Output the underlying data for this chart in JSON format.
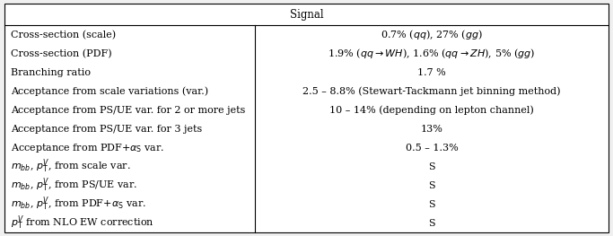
{
  "title": "Signal",
  "rows": [
    [
      "Cross-section (scale)",
      "0.7% ($qq$), 27% ($gg$)"
    ],
    [
      "Cross-section (PDF)",
      "1.9% ($qq \\rightarrow WH$), 1.6% ($qq \\rightarrow ZH$), 5% ($gg$)"
    ],
    [
      "Branching ratio",
      "1.7 %"
    ],
    [
      "Acceptance from scale variations (var.)",
      "2.5 – 8.8% (Stewart-Tackmann jet binning method)"
    ],
    [
      "Acceptance from PS/UE var. for 2 or more jets",
      "10 – 14% (depending on lepton channel)"
    ],
    [
      "Acceptance from PS/UE var. for 3 jets",
      "13%"
    ],
    [
      "Acceptance from PDF+$\\alpha_\\mathrm{S}$ var.",
      "0.5 – 1.3%"
    ],
    [
      "$m_{bb}$, $p_\\mathrm{T}^{V}$, from scale var.",
      "S"
    ],
    [
      "$m_{bb}$, $p_\\mathrm{T}^{V}$, from PS/UE var.",
      "S"
    ],
    [
      "$m_{bb}$, $p_\\mathrm{T}^{V}$, from PDF+$\\alpha_\\mathrm{S}$ var.",
      "S"
    ],
    [
      "$p_\\mathrm{T}^{V}$ from NLO EW correction",
      "S"
    ]
  ],
  "col_split": 0.415,
  "figsize": [
    6.83,
    2.63
  ],
  "dpi": 100,
  "fontsize": 8.0,
  "title_fontsize": 8.5,
  "bg_color": "#f0f0f0",
  "table_bg": "#ffffff"
}
